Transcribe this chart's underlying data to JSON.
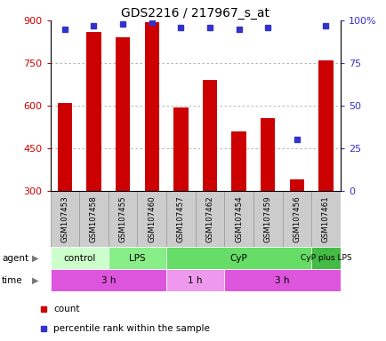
{
  "title": "GDS2216 / 217967_s_at",
  "samples": [
    "GSM107453",
    "GSM107458",
    "GSM107455",
    "GSM107460",
    "GSM107457",
    "GSM107462",
    "GSM107454",
    "GSM107459",
    "GSM107456",
    "GSM107461"
  ],
  "counts": [
    610,
    860,
    840,
    895,
    595,
    690,
    510,
    555,
    340,
    760
  ],
  "percentile_ranks": [
    95,
    97,
    98,
    99,
    96,
    96,
    95,
    96,
    30,
    97
  ],
  "ylim": [
    300,
    900
  ],
  "yticks": [
    300,
    450,
    600,
    750,
    900
  ],
  "yticks_right": [
    0,
    25,
    50,
    75,
    100
  ],
  "bar_color": "#cc0000",
  "dot_color": "#3333cc",
  "grid_color": "#aaaaaa",
  "agent_groups": [
    {
      "label": "control",
      "start": 0,
      "end": 2,
      "color": "#ccffcc"
    },
    {
      "label": "LPS",
      "start": 2,
      "end": 4,
      "color": "#88ee88"
    },
    {
      "label": "CyP",
      "start": 4,
      "end": 9,
      "color": "#66dd66"
    },
    {
      "label": "CyP plus LPS",
      "start": 9,
      "end": 10,
      "color": "#44bb44"
    }
  ],
  "time_groups": [
    {
      "label": "3 h",
      "start": 0,
      "end": 4,
      "color": "#dd55dd"
    },
    {
      "label": "1 h",
      "start": 4,
      "end": 6,
      "color": "#ee99ee"
    },
    {
      "label": "3 h",
      "start": 6,
      "end": 10,
      "color": "#dd55dd"
    }
  ],
  "bar_width": 0.5,
  "background_color": "#ffffff",
  "plot_bg": "#ffffff",
  "label_color_left": "#cc0000",
  "label_color_right": "#3333cc"
}
